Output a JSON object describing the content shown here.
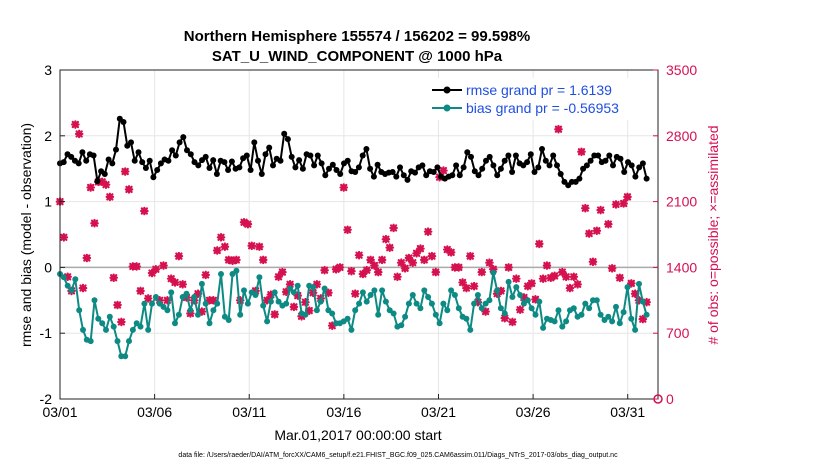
{
  "chart_data": {
    "type": "line",
    "title": "Northern Hemisphere 155574 / 156202 = 99.598%",
    "subtitle": "SAT_U_WIND_COMPONENT @ 1000 hPa",
    "xlabel": "Mar.01,2017 00:00:00 start",
    "ylabel": "rmse and bias (model - observation)",
    "ylabel_right": "# of obs: o=possible; ×=assimilated",
    "xlim": [
      0,
      31.6
    ],
    "ylim": [
      -2,
      3
    ],
    "ylim_right": [
      0,
      3500
    ],
    "x_ticks": [
      0,
      5,
      10,
      15,
      20,
      25,
      30
    ],
    "x_tick_labels": [
      "03/01",
      "03/06",
      "03/11",
      "03/16",
      "03/21",
      "03/26",
      "03/31"
    ],
    "y_ticks": [
      -2,
      -1,
      0,
      1,
      2,
      3
    ],
    "y_tick_labels": [
      "-2",
      "-1",
      "0",
      "1",
      "2",
      "3"
    ],
    "y_ticks_right": [
      0,
      700,
      1400,
      2100,
      2800,
      3500
    ],
    "y_tick_labels_right": [
      "0",
      "700",
      "1400",
      "2100",
      "2800",
      "3500"
    ],
    "grid": true,
    "zero_line": 0,
    "legend_position": "top-right",
    "colors": {
      "rmse": "#000000",
      "bias": "#0e8a85",
      "obs": "#d6114f",
      "zero": "#aaaaaa",
      "legend_text": "#1f4fe0"
    },
    "series": [
      {
        "name": "rmse grand pr = 1.6139",
        "axis": "left",
        "values": [
          1.58,
          1.6,
          1.72,
          1.68,
          1.62,
          1.58,
          1.75,
          1.62,
          1.72,
          1.7,
          1.31,
          1.46,
          1.42,
          1.64,
          1.58,
          1.79,
          2.26,
          2.21,
          1.85,
          1.9,
          1.62,
          1.75,
          1.6,
          1.51,
          1.62,
          1.37,
          1.48,
          1.58,
          1.64,
          1.62,
          1.78,
          1.7,
          1.9,
          1.98,
          1.78,
          1.72,
          1.6,
          1.55,
          1.63,
          1.68,
          1.51,
          1.63,
          1.42,
          1.62,
          1.6,
          1.48,
          1.61,
          1.5,
          1.52,
          1.66,
          1.7,
          1.48,
          1.9,
          1.62,
          1.42,
          1.72,
          1.82,
          1.55,
          1.65,
          1.62,
          2.03,
          1.95,
          1.68,
          1.52,
          1.63,
          1.5,
          1.72,
          1.7,
          1.55,
          1.7,
          1.58,
          1.4,
          1.5,
          1.56,
          1.48,
          1.42,
          1.58,
          1.62,
          1.46,
          1.45,
          1.52,
          1.7,
          1.8,
          1.5,
          1.38,
          1.56,
          1.45,
          1.42,
          1.44,
          1.45,
          1.38,
          1.52,
          1.4,
          1.33,
          1.46,
          1.44,
          1.52,
          1.55,
          1.4,
          1.46,
          1.45,
          1.52,
          1.38,
          1.35,
          1.38,
          1.4,
          1.55,
          1.4,
          1.52,
          1.75,
          1.68,
          1.46,
          1.4,
          1.5,
          1.62,
          1.68,
          1.55,
          1.4,
          1.5,
          1.62,
          1.7,
          1.45,
          1.7,
          1.58,
          1.55,
          1.6,
          1.72,
          1.45,
          1.52,
          1.8,
          1.62,
          1.55,
          1.7,
          1.55,
          1.42,
          1.3,
          1.25,
          1.3,
          1.3,
          1.35,
          1.5,
          1.55,
          1.62,
          1.7,
          1.7,
          1.6,
          1.62,
          1.7,
          1.55,
          1.68,
          1.65,
          1.45,
          1.6,
          1.55,
          1.38,
          1.52,
          1.58,
          1.35
        ]
      },
      {
        "name": "bias grand pr = -0.56953",
        "axis": "left",
        "values": [
          -0.1,
          -0.15,
          -0.28,
          -0.35,
          -0.18,
          -0.65,
          -0.95,
          -1.1,
          -1.12,
          -0.5,
          -0.78,
          -0.85,
          -0.95,
          -0.75,
          -0.9,
          -1.12,
          -1.35,
          -1.35,
          -1.12,
          -0.95,
          -0.85,
          -0.9,
          -0.55,
          -0.95,
          -0.55,
          -0.45,
          -0.55,
          -0.6,
          -0.65,
          -0.38,
          -0.85,
          -0.72,
          -0.45,
          -0.4,
          -0.65,
          -0.45,
          -0.72,
          -0.25,
          -0.55,
          -0.85,
          -0.65,
          -0.55,
          -0.1,
          -0.75,
          -0.8,
          -0.1,
          -0.05,
          -0.72,
          -0.35,
          -0.55,
          -0.38,
          -0.42,
          -0.15,
          -0.58,
          -0.82,
          -0.52,
          -0.38,
          -0.52,
          -0.58,
          -0.55,
          -0.32,
          -0.38,
          -0.28,
          -0.7,
          -0.72,
          -0.28,
          -0.3,
          -0.65,
          -0.52,
          -0.32,
          -0.65,
          -0.7,
          -0.85,
          -0.85,
          -0.82,
          -0.78,
          -0.95,
          -0.65,
          -0.55,
          -0.38,
          -0.52,
          -0.42,
          -0.35,
          -0.72,
          -0.35,
          -0.52,
          -0.65,
          -0.7,
          -0.9,
          -0.88,
          -0.75,
          -0.55,
          -0.42,
          -0.55,
          -0.62,
          -0.35,
          -0.45,
          -0.55,
          -0.72,
          -0.85,
          -0.55,
          -0.65,
          -0.35,
          -0.42,
          -0.62,
          -0.75,
          -0.78,
          -0.95,
          -0.55,
          -0.42,
          -0.62,
          -0.55,
          -0.5,
          -0.08,
          -0.35,
          -0.62,
          -0.7,
          -0.22,
          -0.45,
          -0.3,
          -0.42,
          -0.55,
          -0.5,
          -0.62,
          -0.72,
          -0.52,
          -0.92,
          -0.78,
          -0.8,
          -0.82,
          -0.65,
          -0.9,
          -0.82,
          -0.65,
          -0.62,
          -0.75,
          -0.72,
          -0.55,
          -0.62,
          -0.5,
          -0.5,
          -0.72,
          -0.8,
          -0.75,
          -0.82,
          -0.6,
          -0.85,
          -0.68,
          -0.3,
          -0.78,
          -0.95,
          -0.25,
          -0.52,
          -0.72
        ]
      },
      {
        "name": "obs assimilated",
        "axis": "right",
        "values": [
          2100,
          1720,
          1300,
          1150,
          2920,
          2820,
          1180,
          1500,
          2250,
          1870,
          2310,
          2310,
          2280,
          2150,
          1290,
          1000,
          820,
          2420,
          2230,
          1410,
          1410,
          1150,
          2000,
          1070,
          1340,
          1380,
          1050,
          1420,
          1050,
          1280,
          1240,
          1520,
          1220,
          1080,
          910,
          1050,
          1120,
          930,
          1320,
          1050,
          1050,
          1580,
          1720,
          1620,
          1480,
          1470,
          1480,
          1050,
          1880,
          1860,
          1630,
          1150,
          1620,
          1480,
          1050,
          1110,
          900,
          1300,
          1350,
          1140,
          1220,
          980,
          1100,
          880,
          1030,
          940,
          1130,
          1220,
          1070,
          1370,
          1130,
          780,
          1380,
          1400,
          2250,
          1800,
          1360,
          1120,
          1530,
          1330,
          1370,
          1480,
          1420,
          1350,
          1480,
          1700,
          1610,
          1820,
          1300,
          1450,
          1390,
          1500,
          1450,
          1550,
          1600,
          1480,
          1780,
          1520,
          1350,
          2360,
          2430,
          1590,
          1560,
          1400,
          1400,
          1240,
          1180,
          1520,
          1200,
          1030,
          1350,
          930,
          1450,
          1380,
          1120,
          1150,
          860,
          1400,
          820,
          1280,
          950,
          1080,
          1200,
          1230,
          1060,
          1650,
          1280,
          1420,
          1290,
          1310,
          2870,
          1350,
          1300,
          1180,
          1300,
          1220,
          2630,
          2030,
          1760,
          1460,
          1790,
          2010,
          3270,
          1860,
          1390,
          2070,
          1290,
          2080,
          2150,
          1230,
          1120,
          1050,
          850,
          1030
        ]
      }
    ]
  },
  "footer": {
    "datafile": "data file: /Users/raeder/DAI/ATM_forcXX/CAM6_setup/f.e21.FHIST_BGC.f09_025.CAM6assim.011/Diags_NTrS_2017-03/obs_diag_output.nc"
  }
}
